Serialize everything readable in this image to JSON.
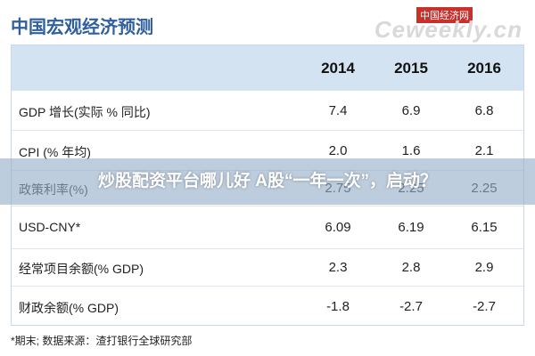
{
  "header": {
    "title": "中国宏观经济预测",
    "logo": "中国经济网",
    "watermark": "Ceweekly.cn"
  },
  "table": {
    "columns": [
      "2014",
      "2015",
      "2016"
    ],
    "rows": [
      [
        "GDP 增长(实际 % 同比)",
        "7.4",
        "6.9",
        "6.8"
      ],
      [
        "CPI (% 年均)",
        "2.0",
        "1.6",
        "2.1"
      ],
      [
        "政策利率(%)",
        "2.75",
        "2.25",
        "2.25"
      ],
      [
        "USD-CNY*",
        "6.09",
        "6.19",
        "6.15"
      ],
      [
        "经常项目余额(% GDP)",
        "2.3",
        "2.8",
        "2.9"
      ],
      [
        "财政余额(% GDP)",
        "-1.8",
        "-2.7",
        "-2.7"
      ]
    ]
  },
  "footnote": "*期末;    数据来源：渣打银行全球研究部",
  "banner": "炒股配资平台哪儿好 A股“一年一次”，启动？"
}
